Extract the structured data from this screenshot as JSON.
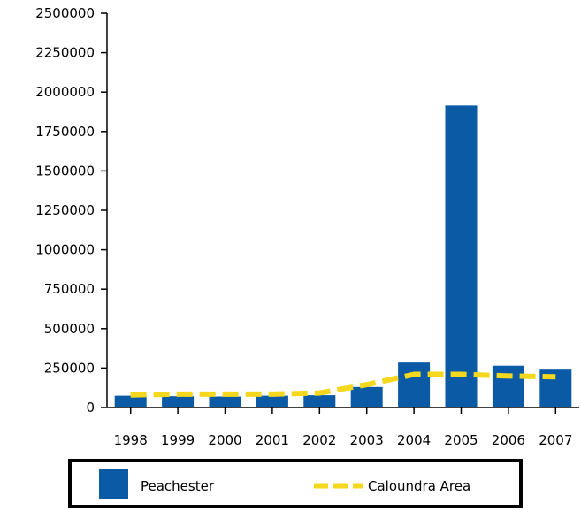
{
  "chart_data": {
    "type": "bar",
    "categories": [
      "1998",
      "1999",
      "2000",
      "2001",
      "2002",
      "2003",
      "2004",
      "2005",
      "2006",
      "2007"
    ],
    "series": [
      {
        "name": "Peachester",
        "type": "bar",
        "color": "#0a5aa5",
        "values": [
          75000,
          72000,
          70000,
          75000,
          78000,
          130000,
          285000,
          1915000,
          265000,
          240000
        ]
      },
      {
        "name": "Caloundra Area",
        "type": "line",
        "style": "dashed",
        "color": "#f5d81e",
        "values": [
          80000,
          85000,
          85000,
          85000,
          92000,
          145000,
          210000,
          210000,
          200000,
          195000
        ]
      }
    ],
    "ylim": [
      0,
      2500000
    ],
    "yticks": [
      "0",
      "250000",
      "500000",
      "750000",
      "1000000",
      "1250000",
      "1500000",
      "1750000",
      "2000000",
      "2250000",
      "2500000"
    ],
    "title": "",
    "xlabel": "",
    "ylabel": "",
    "grid": false,
    "legend": "bottom"
  }
}
